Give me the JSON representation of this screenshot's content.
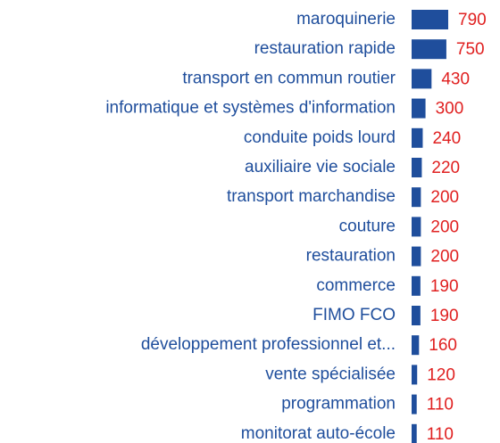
{
  "chart_data": {
    "type": "barh",
    "categories": [
      "maroquinerie",
      "restauration rapide",
      "transport en commun routier",
      "informatique et systèmes d'information",
      "conduite poids lourd",
      "auxiliaire vie sociale",
      "transport marchandise",
      "couture",
      "restauration",
      "commerce",
      "FIMO FCO",
      "développement professionnel et...",
      "vente spécialisée",
      "programmation",
      "monitorat auto-école"
    ],
    "values": [
      790,
      750,
      430,
      300,
      240,
      220,
      200,
      200,
      200,
      190,
      190,
      160,
      120,
      110,
      110
    ],
    "color": "#1f4e9c",
    "label_color": "#1f4e9c",
    "value_label_color": "#e02020"
  }
}
